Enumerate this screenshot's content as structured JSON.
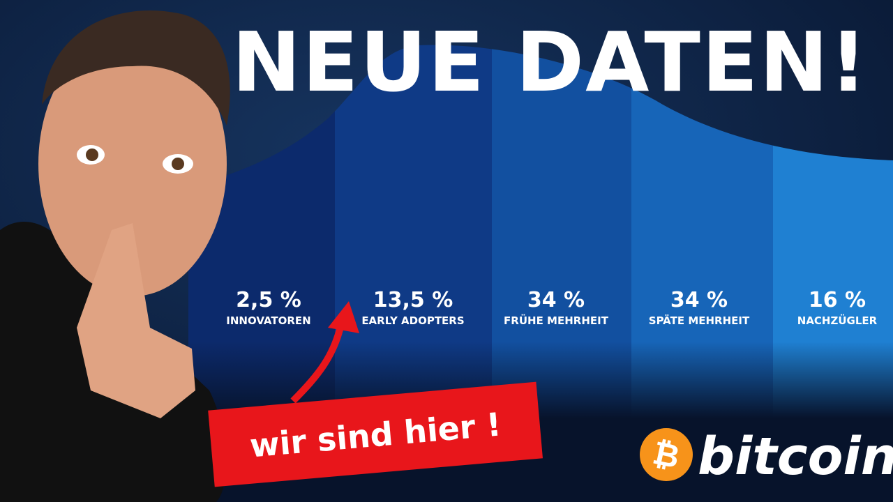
{
  "title": "NEUE DATEN!",
  "segments": [
    {
      "value": "2,5 %",
      "label": "INNOVATOREN"
    },
    {
      "value": "13,5 %",
      "label": "EARLY ADOPTERS"
    },
    {
      "value": "34 %",
      "label": "FRÜHE MEHRHEIT"
    },
    {
      "value": "34 %",
      "label": "SPÄTE MEHRHEIT"
    },
    {
      "value": "16 %",
      "label": "NACHZÜGLER"
    }
  ],
  "callout": "wir sind hier !",
  "brand": {
    "icon": "₿",
    "name": "bitcoin"
  }
}
